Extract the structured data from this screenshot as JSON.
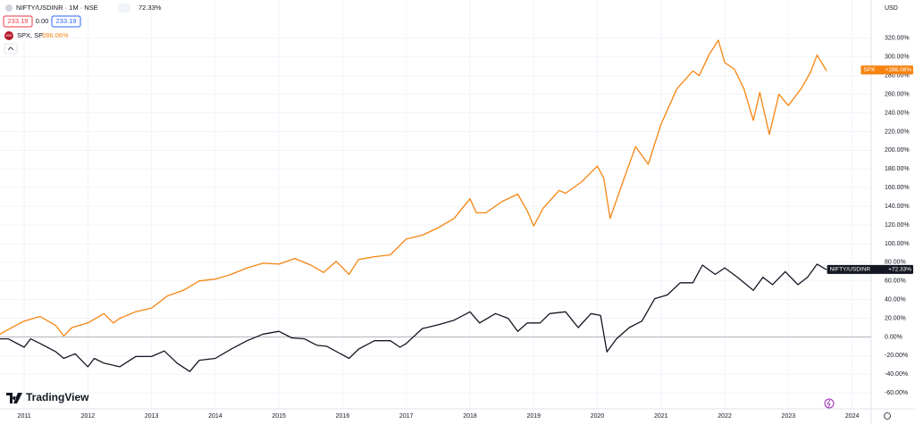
{
  "chart_data": {
    "type": "line",
    "legend": {
      "symbol": "NIFTY/USDINR · 1M · NSE",
      "change": "72.33%",
      "sell": "233.19",
      "spread": "0.00",
      "buy": "233.19",
      "compare_badge": "500",
      "compare_symbol": "SPX, SP",
      "compare_change": "286.06%"
    },
    "y_axis_label": "USD",
    "brand": "TradingView",
    "xlim": [
      2010.62,
      2024.3
    ],
    "xticks": [
      2011,
      2012,
      2013,
      2014,
      2015,
      2016,
      2017,
      2018,
      2019,
      2020,
      2021,
      2022,
      2023,
      2024
    ],
    "ylim": [
      -77,
      361
    ],
    "yticks": [
      {
        "value": -60,
        "label": "-60.00%"
      },
      {
        "value": -40,
        "label": "-40.00%"
      },
      {
        "value": -20,
        "label": "-20.00%"
      },
      {
        "value": 0,
        "label": "0.00%"
      },
      {
        "value": 20,
        "label": "20.00%"
      },
      {
        "value": 40,
        "label": "40.00%"
      },
      {
        "value": 60,
        "label": "60.00%"
      },
      {
        "value": 80,
        "label": "80.00%"
      },
      {
        "value": 100,
        "label": "100.00%"
      },
      {
        "value": 120,
        "label": "120.00%"
      },
      {
        "value": 140,
        "label": "140.00%"
      },
      {
        "value": 160,
        "label": "160.00%"
      },
      {
        "value": 180,
        "label": "180.00%"
      },
      {
        "value": 200,
        "label": "200.00%"
      },
      {
        "value": 220,
        "label": "220.00%"
      },
      {
        "value": 240,
        "label": "240.00%"
      },
      {
        "value": 260,
        "label": "260.00%"
      },
      {
        "value": 280,
        "label": "280.00%"
      },
      {
        "value": 300,
        "label": "300.00%"
      },
      {
        "value": 320,
        "label": "320.00%"
      }
    ],
    "grid": true,
    "series": [
      {
        "name": "SPX",
        "color": "#f68410",
        "end_label": "+286.06%",
        "end_value": 286.06,
        "x": [
          2010.62,
          2010.75,
          2011.0,
          2011.25,
          2011.5,
          2011.62,
          2011.75,
          2012.0,
          2012.25,
          2012.4,
          2012.5,
          2012.75,
          2013.0,
          2013.25,
          2013.5,
          2013.75,
          2014.0,
          2014.25,
          2014.5,
          2014.75,
          2015.0,
          2015.25,
          2015.5,
          2015.7,
          2015.9,
          2016.1,
          2016.25,
          2016.5,
          2016.75,
          2017.0,
          2017.25,
          2017.5,
          2017.75,
          2018.0,
          2018.1,
          2018.25,
          2018.5,
          2018.75,
          2018.9,
          2019.0,
          2019.15,
          2019.4,
          2019.5,
          2019.75,
          2020.0,
          2020.1,
          2020.2,
          2020.4,
          2020.6,
          2020.8,
          2021.0,
          2021.25,
          2021.5,
          2021.6,
          2021.75,
          2021.9,
          2022.0,
          2022.15,
          2022.3,
          2022.45,
          2022.55,
          2022.7,
          2022.85,
          2023.0,
          2023.2,
          2023.35,
          2023.45,
          2023.6
        ],
        "values": [
          3,
          8,
          17,
          22,
          12,
          1,
          10,
          15,
          25,
          15,
          20,
          27,
          31,
          44,
          50,
          60,
          62,
          67,
          74,
          79,
          78,
          84,
          77,
          69,
          81,
          67,
          83,
          86,
          88,
          105,
          109,
          117,
          127,
          148,
          133,
          133,
          145,
          153,
          135,
          119,
          138,
          157,
          154,
          166,
          183,
          170,
          127,
          166,
          204,
          185,
          228,
          266,
          285,
          280,
          302,
          318,
          294,
          287,
          266,
          232,
          262,
          217,
          260,
          248,
          266,
          284,
          302,
          285
        ]
      },
      {
        "name": "NIFTY/USDINR",
        "color": "#131722",
        "end_label": "+72.33%",
        "end_value": 72.33,
        "x": [
          2010.62,
          2010.75,
          2011.0,
          2011.1,
          2011.25,
          2011.5,
          2011.62,
          2011.8,
          2012.0,
          2012.1,
          2012.25,
          2012.5,
          2012.75,
          2013.0,
          2013.2,
          2013.4,
          2013.6,
          2013.75,
          2014.0,
          2014.25,
          2014.5,
          2014.75,
          2015.0,
          2015.2,
          2015.4,
          2015.6,
          2015.75,
          2016.1,
          2016.25,
          2016.5,
          2016.75,
          2016.9,
          2017.0,
          2017.25,
          2017.5,
          2017.75,
          2018.0,
          2018.15,
          2018.4,
          2018.6,
          2018.75,
          2018.9,
          2019.1,
          2019.25,
          2019.5,
          2019.7,
          2019.9,
          2020.05,
          2020.15,
          2020.3,
          2020.5,
          2020.7,
          2020.9,
          2021.1,
          2021.3,
          2021.5,
          2021.65,
          2021.85,
          2022.0,
          2022.2,
          2022.45,
          2022.6,
          2022.75,
          2022.95,
          2023.15,
          2023.3,
          2023.45,
          2023.6
        ],
        "values": [
          -2,
          -2,
          -11,
          -2,
          -7,
          -16,
          -23,
          -18,
          -32,
          -23,
          -28,
          -32,
          -21,
          -21,
          -15,
          -28,
          -37,
          -25,
          -23,
          -13,
          -4,
          3,
          6,
          -1,
          -2,
          -9,
          -10,
          -23,
          -13,
          -4,
          -4,
          -11,
          -7,
          9,
          13,
          18,
          27,
          15,
          25,
          20,
          6,
          15,
          15,
          25,
          27,
          10,
          25,
          23,
          -16,
          -2,
          10,
          17,
          41,
          45,
          58,
          58,
          77,
          67,
          74,
          64,
          50,
          64,
          56,
          70,
          56,
          64,
          78,
          72
        ]
      }
    ]
  }
}
